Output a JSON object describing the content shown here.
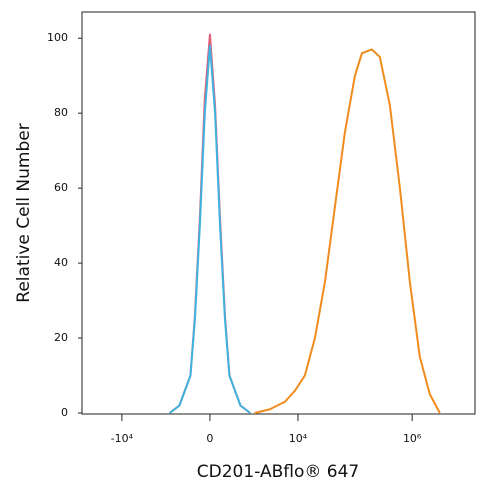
{
  "chart_data": {
    "type": "line",
    "xscale": "biexponential",
    "xlabel": "CD201-ABflo® 647",
    "ylabel": "Relative Cell Number",
    "xlim": [
      -50000,
      12600000
    ],
    "ylim": [
      0,
      107
    ],
    "xticks": [
      {
        "value": -10000,
        "label": "-10⁴"
      },
      0,
      {
        "value": 10000,
        "label": "10⁴"
      },
      {
        "value": 1000000,
        "label": "10⁶"
      }
    ],
    "yticks": [
      0,
      20,
      40,
      60,
      80,
      100
    ],
    "series": [
      {
        "color": "#e0607a",
        "x": [
          -1400,
          -900,
          -500,
          -370,
          -240,
          -120,
          0,
          120,
          240,
          370,
          500,
          900,
          1400
        ],
        "values": [
          0,
          2,
          10,
          26,
          52,
          84,
          101,
          82,
          52,
          26,
          10,
          2,
          0
        ]
      },
      {
        "color": "#3fb3df",
        "x": [
          -1400,
          -900,
          -500,
          -370,
          -240,
          -120,
          0,
          120,
          240,
          370,
          500,
          900,
          1400
        ],
        "values": [
          0,
          2,
          10,
          25,
          50,
          80,
          98,
          80,
          50,
          25,
          10,
          2,
          0
        ]
      },
      {
        "color": "#f08c1e",
        "x": [
          1700,
          3200,
          5900,
          8900,
          13200,
          19800,
          29700,
          44400,
          66500,
          99500,
          132000,
          197000,
          272000,
          408000,
          610000,
          911000,
          1360000,
          2040000,
          3050000
        ],
        "values": [
          0,
          1,
          3,
          6,
          10,
          20,
          35,
          55,
          75,
          90,
          96,
          97,
          95,
          82,
          60,
          35,
          15,
          5,
          0
        ]
      }
    ]
  }
}
